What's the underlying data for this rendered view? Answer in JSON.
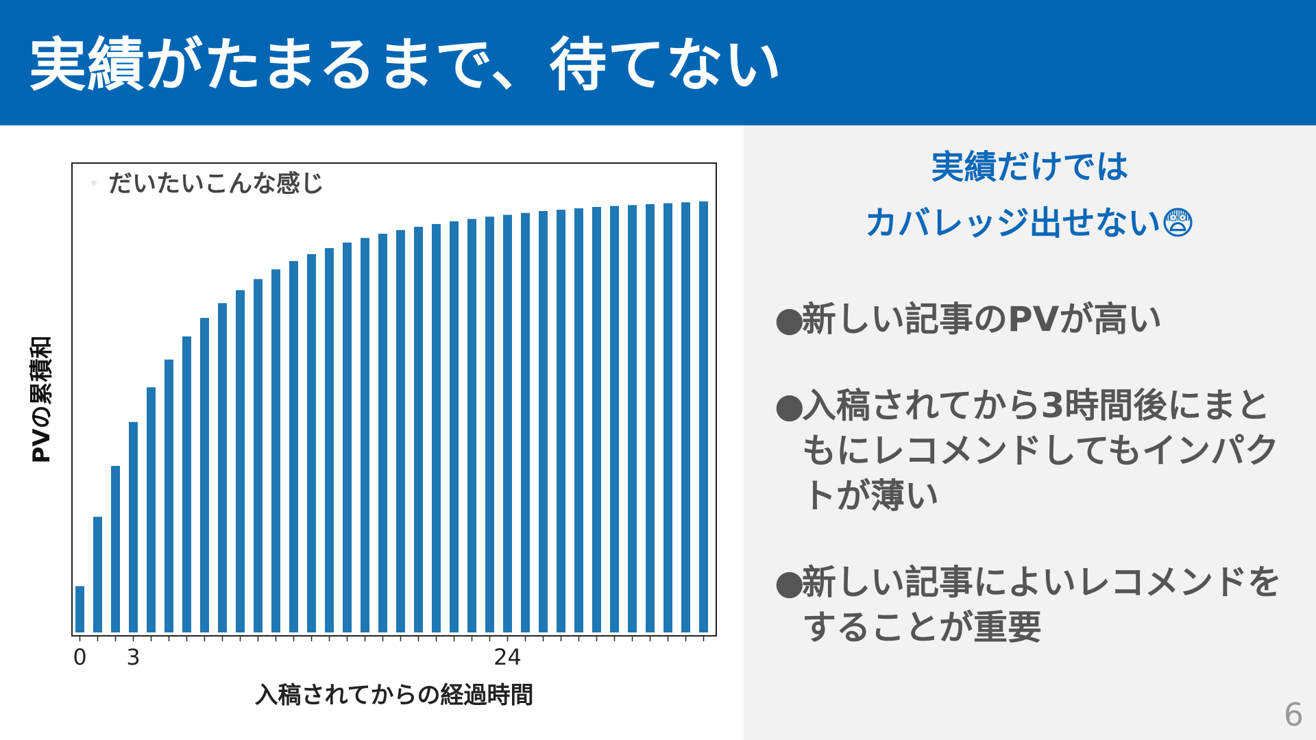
{
  "slide": {
    "title": "実績がたまるまで、待てない",
    "page_number": "6"
  },
  "right_panel": {
    "headline_line1": "実績だけでは",
    "headline_line2": "カバレッジ出せない😨",
    "bullet_symbol": "●",
    "bullets": [
      "新しい記事のPVが高い",
      "入稿されてから3時間後にまともにレコメンドしてもインパクトが薄い",
      "新しい記事によいレコメンドをすることが重要"
    ]
  },
  "chart_data": {
    "type": "bar",
    "legend_label": "だいたいこんな感じ",
    "legend_position": "top-left",
    "xlabel": "入稿されてからの経過時間",
    "ylabel": "PVの累積和",
    "x_tick_labels": [
      {
        "index": 0,
        "label": "0"
      },
      {
        "index": 3,
        "label": "3"
      },
      {
        "index": 24,
        "label": "24"
      }
    ],
    "values": [
      0.1,
      0.25,
      0.36,
      0.455,
      0.53,
      0.59,
      0.64,
      0.68,
      0.712,
      0.74,
      0.764,
      0.785,
      0.803,
      0.818,
      0.831,
      0.843,
      0.853,
      0.862,
      0.87,
      0.877,
      0.883,
      0.889,
      0.894,
      0.899,
      0.903,
      0.907,
      0.911,
      0.914,
      0.917,
      0.92,
      0.922,
      0.924,
      0.926,
      0.928,
      0.93,
      0.932
    ],
    "ylim": [
      0,
      1
    ],
    "grid": false,
    "colors": {
      "bar": "#1f77b4",
      "frame": "#222222"
    }
  }
}
